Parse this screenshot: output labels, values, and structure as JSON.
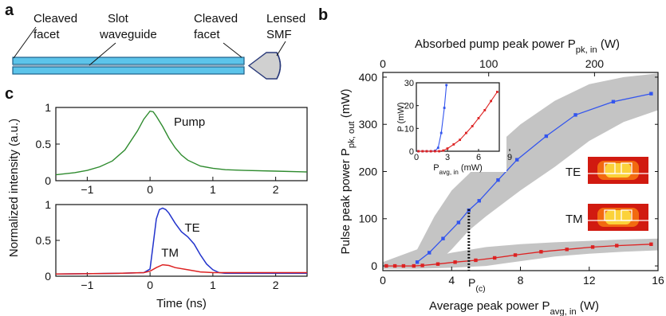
{
  "panels": {
    "a": {
      "letter": "a",
      "labels": {
        "cleaved_facet_left": [
          "Cleaved",
          "facet"
        ],
        "slot_waveguide": [
          "Slot",
          "waveguide"
        ],
        "cleaved_facet_right": [
          "Cleaved",
          "facet"
        ],
        "lensed_smf": [
          "Lensed",
          "SMF"
        ]
      }
    },
    "b": {
      "letter": "b"
    },
    "c": {
      "letter": "c"
    }
  },
  "chart_data": [
    {
      "id": "c-top",
      "type": "line",
      "xlim": [
        -1.5,
        2.5
      ],
      "ylim": [
        0,
        1
      ],
      "xticks": [
        "-1",
        "0",
        "1",
        "2"
      ],
      "xtick_values": [
        -1,
        0,
        1,
        2
      ],
      "yticks": [
        "0",
        "0.5",
        "1"
      ],
      "ytick_values": [
        0,
        0.5,
        1
      ],
      "series": [
        {
          "name": "Pump",
          "color": "#2e8b2e",
          "x": [
            -1.5,
            -1.2,
            -1.0,
            -0.8,
            -0.6,
            -0.4,
            -0.2,
            -0.1,
            0.0,
            0.05,
            0.1,
            0.2,
            0.3,
            0.4,
            0.5,
            0.6,
            0.8,
            1.0,
            1.2,
            1.5,
            2.0,
            2.5
          ],
          "y": [
            0.08,
            0.11,
            0.14,
            0.19,
            0.27,
            0.42,
            0.68,
            0.84,
            0.95,
            0.94,
            0.88,
            0.74,
            0.58,
            0.45,
            0.35,
            0.28,
            0.2,
            0.17,
            0.15,
            0.14,
            0.13,
            0.12
          ]
        }
      ]
    },
    {
      "id": "c-bottom",
      "type": "line",
      "xlim": [
        -1.5,
        2.5
      ],
      "ylim": [
        0,
        1
      ],
      "xticks": [
        "-1",
        "0",
        "1",
        "2"
      ],
      "xtick_values": [
        -1,
        0,
        1,
        2
      ],
      "yticks": [
        "0",
        "0.5",
        "1"
      ],
      "ytick_values": [
        0,
        0.5,
        1
      ],
      "xlabel": "Time (ns)",
      "shared_ylabel": "Normalized intensity (a.u.)",
      "series": [
        {
          "name": "TE",
          "color": "#2233cc",
          "x": [
            -1.5,
            -0.5,
            -0.1,
            0.0,
            0.05,
            0.1,
            0.15,
            0.2,
            0.25,
            0.3,
            0.4,
            0.5,
            0.6,
            0.7,
            0.8,
            0.9,
            1.0,
            1.1,
            1.2,
            1.5,
            2.0,
            2.5
          ],
          "y": [
            0.03,
            0.04,
            0.05,
            0.1,
            0.45,
            0.8,
            0.93,
            0.95,
            0.93,
            0.88,
            0.74,
            0.62,
            0.55,
            0.45,
            0.3,
            0.17,
            0.09,
            0.05,
            0.04,
            0.04,
            0.04,
            0.04
          ]
        },
        {
          "name": "TM",
          "color": "#dd2222",
          "x": [
            -1.5,
            -0.5,
            -0.1,
            0.0,
            0.1,
            0.2,
            0.3,
            0.4,
            0.6,
            0.8,
            1.0,
            1.2,
            1.5,
            2.0,
            2.5
          ],
          "y": [
            0.03,
            0.04,
            0.05,
            0.07,
            0.12,
            0.16,
            0.15,
            0.12,
            0.09,
            0.06,
            0.05,
            0.05,
            0.05,
            0.05,
            0.05
          ]
        }
      ]
    },
    {
      "id": "b-main",
      "type": "line",
      "xlim": [
        0,
        16
      ],
      "ylim": [
        -10,
        410
      ],
      "xticks": [
        "0",
        "4",
        "8",
        "12",
        "16"
      ],
      "xtick_values": [
        0,
        4,
        8,
        12,
        16
      ],
      "yticks": [
        "0",
        "100",
        "200",
        "300",
        "400"
      ],
      "ytick_values": [
        0,
        100,
        200,
        300,
        400
      ],
      "top_xticks": [
        "0",
        "100",
        "200"
      ],
      "top_xtick_values": [
        0,
        100,
        200
      ],
      "top_xlim": [
        0,
        260
      ],
      "xlabel": "Average peak power P",
      "xlabel_sub": "avg, in",
      "xlabel_unit": " (W)",
      "ylabel": "Pulse peak power P",
      "ylabel_sub": "pk, out",
      "ylabel_unit": " (mW)",
      "top_xlabel": "Absorbed pump peak power P",
      "top_xlabel_sub": "pk, in",
      "top_xlabel_unit": " (W)",
      "threshold": {
        "label": "P",
        "sub": "(c)",
        "x": 5,
        "y": 120
      },
      "band_te": {
        "x": [
          0,
          2,
          3,
          4,
          5,
          6,
          8,
          10,
          12,
          14,
          16
        ],
        "upper": [
          8,
          35,
          105,
          160,
          195,
          235,
          300,
          350,
          385,
          400,
          408
        ],
        "lower": [
          -6,
          -4,
          0,
          35,
          75,
          105,
          160,
          210,
          265,
          305,
          330
        ]
      },
      "band_tm": {
        "x": [
          0,
          2,
          4,
          6,
          8,
          10,
          12,
          14,
          16
        ],
        "upper": [
          6,
          12,
          28,
          40,
          46,
          50,
          53,
          56,
          58
        ],
        "lower": [
          -6,
          -6,
          -4,
          0,
          10,
          20,
          26,
          30,
          33
        ]
      },
      "series": [
        {
          "name": "TE",
          "color": "#3355ee",
          "x": [
            2.0,
            2.7,
            3.5,
            4.4,
            5.0,
            5.6,
            6.7,
            7.8,
            9.5,
            11.2,
            13.4,
            15.6
          ],
          "y": [
            8,
            28,
            58,
            92,
            118,
            138,
            182,
            225,
            275,
            320,
            348,
            365
          ]
        },
        {
          "name": "TM",
          "color": "#dd2222",
          "x": [
            0.2,
            0.7,
            1.2,
            1.8,
            2.3,
            3.2,
            4.2,
            5.4,
            6.5,
            7.7,
            9.2,
            10.7,
            12.2,
            13.6,
            15.6
          ],
          "y": [
            0,
            0,
            0,
            0,
            1,
            4,
            8,
            12,
            17,
            23,
            30,
            35,
            40,
            43,
            46
          ]
        }
      ],
      "mode_labels": [
        "TE",
        "TM"
      ]
    },
    {
      "id": "b-inset",
      "type": "line",
      "xlim": [
        0,
        8
      ],
      "ylim": [
        0,
        30
      ],
      "xticks": [
        "0",
        "3",
        "6",
        "9"
      ],
      "xtick_values": [
        0,
        3,
        6,
        9
      ],
      "yticks": [
        "0",
        "10",
        "20",
        "30"
      ],
      "ytick_values": [
        0,
        10,
        20,
        30
      ],
      "xlabel": "P",
      "xlabel_sub": "avg, in",
      "xlabel_unit": " (mW)",
      "ylabel": "P",
      "ylabel_unit": " (mW)",
      "series": [
        {
          "name": "TE",
          "color": "#3355ee",
          "x": [
            0.2,
            0.6,
            1.0,
            1.4,
            1.8,
            2.1,
            2.4,
            2.7,
            2.9
          ],
          "y": [
            0,
            0,
            0,
            0,
            0.2,
            1.5,
            8,
            19,
            29
          ]
        },
        {
          "name": "TM",
          "color": "#dd2222",
          "x": [
            0.2,
            0.6,
            1.0,
            1.4,
            1.8,
            2.2,
            2.6,
            3.0,
            3.6,
            4.2,
            4.8,
            5.4,
            6.0,
            6.6,
            7.2,
            7.8
          ],
          "y": [
            0,
            0,
            0,
            0,
            0,
            0,
            0.3,
            1.2,
            3,
            5,
            8,
            11,
            14.5,
            18,
            22,
            26
          ]
        }
      ]
    }
  ]
}
